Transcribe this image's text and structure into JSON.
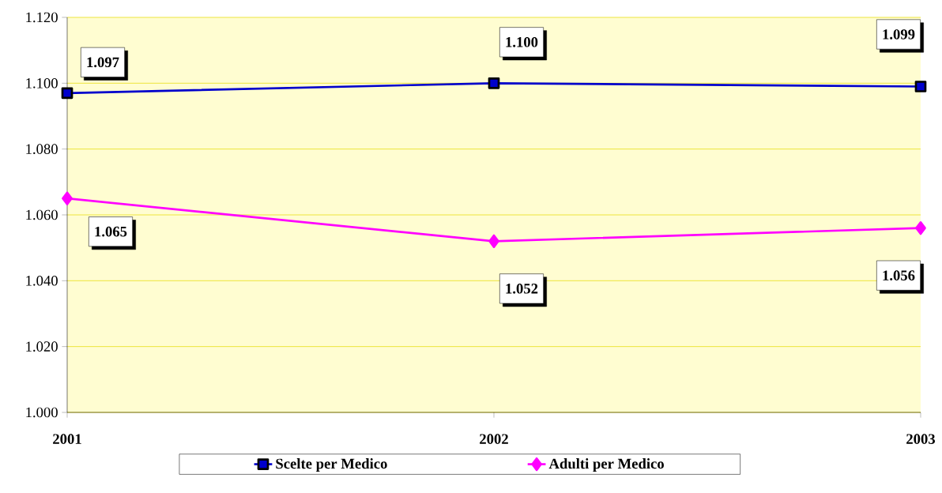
{
  "chart_data": {
    "type": "line",
    "categories": [
      "2001",
      "2002",
      "2003"
    ],
    "series": [
      {
        "name": "Scelte per Medico",
        "color": "#0000cc",
        "marker": "square",
        "values": [
          1097,
          1100,
          1099
        ],
        "value_labels": [
          "1.097",
          "1.100",
          "1.099"
        ]
      },
      {
        "name": "Adulti per Medico",
        "color": "#ff00ff",
        "marker": "diamond",
        "values": [
          1065,
          1052,
          1056
        ],
        "value_labels": [
          "1.065",
          "1.052",
          "1.056"
        ]
      }
    ],
    "ylim": [
      1000,
      1120
    ],
    "yticks": [
      {
        "value": 1000,
        "label": "1.000"
      },
      {
        "value": 1020,
        "label": "1.020"
      },
      {
        "value": 1040,
        "label": "1.040"
      },
      {
        "value": 1060,
        "label": "1.060"
      },
      {
        "value": 1080,
        "label": "1.080"
      },
      {
        "value": 1100,
        "label": "1.100"
      },
      {
        "value": 1120,
        "label": "1.120"
      }
    ],
    "grid": "y",
    "legend": "bottom",
    "line_style": "solid"
  }
}
